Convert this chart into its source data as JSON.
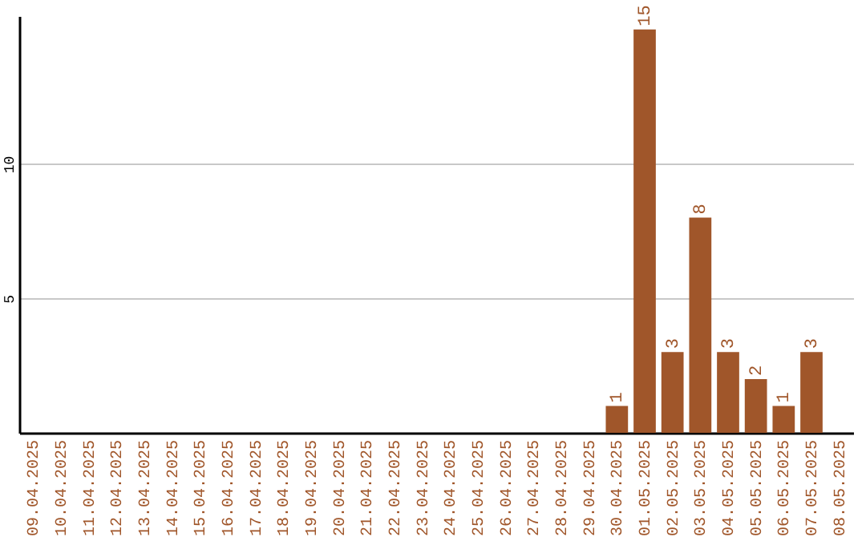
{
  "chart_data": {
    "type": "bar",
    "categories": [
      "09.04.2025",
      "10.04.2025",
      "11.04.2025",
      "12.04.2025",
      "13.04.2025",
      "14.04.2025",
      "15.04.2025",
      "16.04.2025",
      "17.04.2025",
      "18.04.2025",
      "19.04.2025",
      "20.04.2025",
      "21.04.2025",
      "22.04.2025",
      "23.04.2025",
      "24.04.2025",
      "25.04.2025",
      "26.04.2025",
      "27.04.2025",
      "28.04.2025",
      "29.04.2025",
      "30.04.2025",
      "01.05.2025",
      "02.05.2025",
      "03.05.2025",
      "04.05.2025",
      "05.05.2025",
      "06.05.2025",
      "07.05.2025",
      "08.05.2025"
    ],
    "values": [
      null,
      null,
      null,
      null,
      null,
      null,
      null,
      null,
      null,
      null,
      null,
      null,
      null,
      null,
      null,
      null,
      null,
      null,
      null,
      null,
      null,
      1,
      15,
      3,
      8,
      3,
      2,
      1,
      3,
      null
    ],
    "color": "#a0562a",
    "ylim": [
      0,
      15.5
    ],
    "yticks": [
      5,
      10
    ],
    "grid": "y",
    "data_labels": true
  }
}
